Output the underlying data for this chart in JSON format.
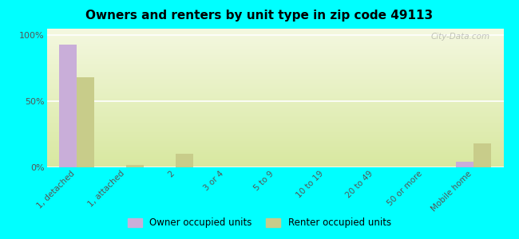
{
  "title": "Owners and renters by unit type in zip code 49113",
  "categories": [
    "1, detached",
    "1, attached",
    "2",
    "3 or 4",
    "5 to 9",
    "10 to 19",
    "20 to 49",
    "50 or more",
    "Mobile home"
  ],
  "owner_values": [
    93,
    0,
    0,
    0,
    0,
    0,
    0,
    0,
    4
  ],
  "renter_values": [
    68,
    2,
    10,
    0,
    0,
    0,
    0,
    0,
    18
  ],
  "owner_color": "#c9aed9",
  "renter_color": "#c8cc8a",
  "background_color": "#00ffff",
  "ylabel_ticks": [
    "0%",
    "50%",
    "100%"
  ],
  "ytick_vals": [
    0,
    50,
    100
  ],
  "ylim": [
    0,
    105
  ],
  "bar_width": 0.35,
  "legend_owner": "Owner occupied units",
  "legend_renter": "Renter occupied units",
  "watermark": "City-Data.com"
}
